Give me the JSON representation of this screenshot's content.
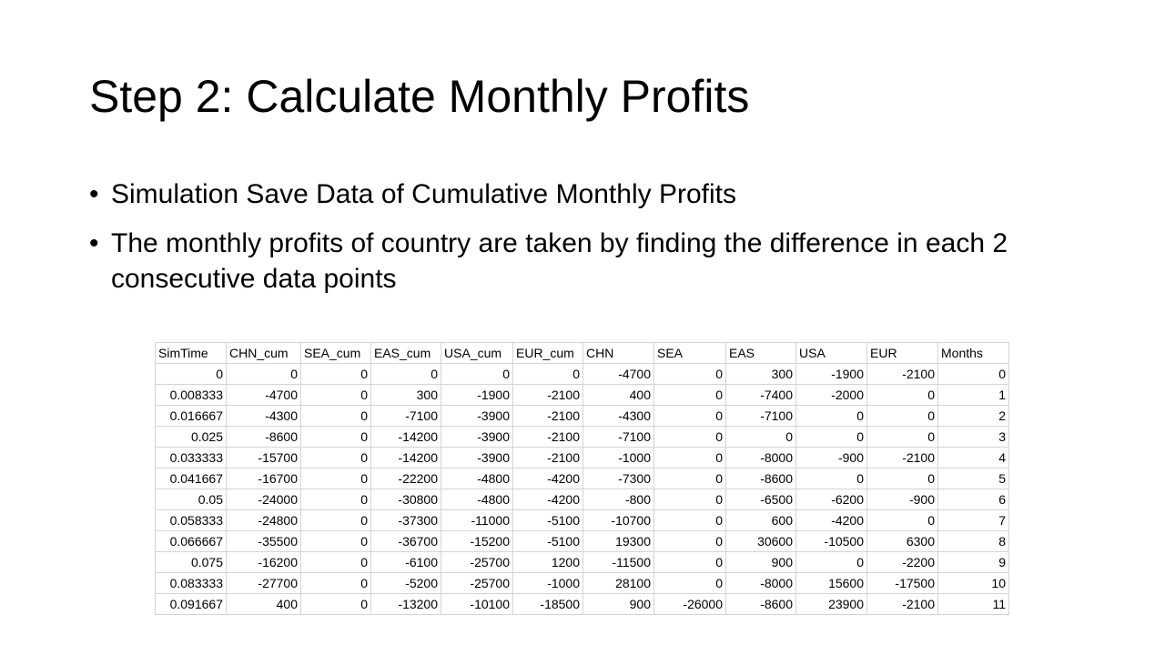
{
  "slide": {
    "title": "Step 2: Calculate Monthly Profits",
    "bullets": [
      "Simulation Save Data of Cumulative Monthly Profits",
      "The monthly profits of country are taken by finding the difference in each 2 consecutive data points"
    ],
    "bullet_symbol": "•"
  },
  "table": {
    "headers": [
      "SimTime",
      "CHN_cum",
      "SEA_cum",
      "EAS_cum",
      "USA_cum",
      "EUR_cum",
      "CHN",
      "SEA",
      "EAS",
      "USA",
      "EUR",
      "Months"
    ],
    "rows": [
      [
        "0",
        "0",
        "0",
        "0",
        "0",
        "0",
        "-4700",
        "0",
        "300",
        "-1900",
        "-2100",
        "0"
      ],
      [
        "0.008333",
        "-4700",
        "0",
        "300",
        "-1900",
        "-2100",
        "400",
        "0",
        "-7400",
        "-2000",
        "0",
        "1"
      ],
      [
        "0.016667",
        "-4300",
        "0",
        "-7100",
        "-3900",
        "-2100",
        "-4300",
        "0",
        "-7100",
        "0",
        "0",
        "2"
      ],
      [
        "0.025",
        "-8600",
        "0",
        "-14200",
        "-3900",
        "-2100",
        "-7100",
        "0",
        "0",
        "0",
        "0",
        "3"
      ],
      [
        "0.033333",
        "-15700",
        "0",
        "-14200",
        "-3900",
        "-2100",
        "-1000",
        "0",
        "-8000",
        "-900",
        "-2100",
        "4"
      ],
      [
        "0.041667",
        "-16700",
        "0",
        "-22200",
        "-4800",
        "-4200",
        "-7300",
        "0",
        "-8600",
        "0",
        "0",
        "5"
      ],
      [
        "0.05",
        "-24000",
        "0",
        "-30800",
        "-4800",
        "-4200",
        "-800",
        "0",
        "-6500",
        "-6200",
        "-900",
        "6"
      ],
      [
        "0.058333",
        "-24800",
        "0",
        "-37300",
        "-11000",
        "-5100",
        "-10700",
        "0",
        "600",
        "-4200",
        "0",
        "7"
      ],
      [
        "0.066667",
        "-35500",
        "0",
        "-36700",
        "-15200",
        "-5100",
        "19300",
        "0",
        "30600",
        "-10500",
        "6300",
        "8"
      ],
      [
        "0.075",
        "-16200",
        "0",
        "-6100",
        "-25700",
        "1200",
        "-11500",
        "0",
        "900",
        "0",
        "-2200",
        "9"
      ],
      [
        "0.083333",
        "-27700",
        "0",
        "-5200",
        "-25700",
        "-1000",
        "28100",
        "0",
        "-8000",
        "15600",
        "-17500",
        "10"
      ],
      [
        "0.091667",
        "400",
        "0",
        "-13200",
        "-10100",
        "-18500",
        "900",
        "-26000",
        "-8600",
        "23900",
        "-2100",
        "11"
      ]
    ]
  }
}
